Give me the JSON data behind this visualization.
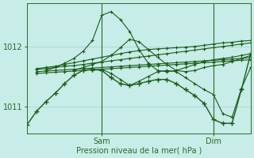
{
  "xlabel": "Pression niveau de la mer( hPa )",
  "bg_color": "#c8ece8",
  "plot_bg_color": "#c8ece8",
  "line_color": "#1a5c1a",
  "grid_color": "#a8d4cc",
  "axis_color": "#2a6a2a",
  "tick_color": "#2a6a2a",
  "ytick_positions": [
    1011.0,
    1012.0
  ],
  "ytick_labels": [
    "1011",
    "1012"
  ],
  "ylim": [
    1010.55,
    1012.72
  ],
  "xlim": [
    0,
    48
  ],
  "xtick_positions": [
    16,
    40
  ],
  "xtick_labels": [
    "Sam",
    "Dim"
  ],
  "lines": [
    {
      "x": [
        2,
        4,
        6,
        8,
        10,
        12,
        14,
        16,
        18,
        20,
        22,
        24,
        26,
        28,
        30,
        32,
        34,
        36,
        38,
        40,
        42,
        44,
        46,
        48
      ],
      "y": [
        1011.55,
        1011.56,
        1011.57,
        1011.58,
        1011.59,
        1011.6,
        1011.61,
        1011.62,
        1011.63,
        1011.64,
        1011.65,
        1011.66,
        1011.67,
        1011.68,
        1011.69,
        1011.7,
        1011.71,
        1011.72,
        1011.73,
        1011.74,
        1011.75,
        1011.76,
        1011.77,
        1011.78
      ]
    },
    {
      "x": [
        2,
        4,
        6,
        8,
        10,
        12,
        14,
        16,
        18,
        20,
        22,
        24,
        26,
        28,
        30,
        32,
        34,
        36,
        38,
        40,
        42,
        44,
        46,
        48
      ],
      "y": [
        1011.58,
        1011.59,
        1011.6,
        1011.61,
        1011.62,
        1011.63,
        1011.64,
        1011.65,
        1011.66,
        1011.67,
        1011.68,
        1011.69,
        1011.7,
        1011.71,
        1011.72,
        1011.73,
        1011.74,
        1011.75,
        1011.76,
        1011.77,
        1011.78,
        1011.79,
        1011.8,
        1011.82
      ]
    },
    {
      "x": [
        2,
        4,
        6,
        8,
        10,
        12,
        14,
        16,
        18,
        20,
        22,
        24,
        26,
        28,
        30,
        32,
        34,
        36,
        38,
        40,
        42,
        44,
        46,
        48
      ],
      "y": [
        1011.62,
        1011.63,
        1011.65,
        1011.67,
        1011.68,
        1011.7,
        1011.72,
        1011.74,
        1011.76,
        1011.78,
        1011.8,
        1011.82,
        1011.84,
        1011.86,
        1011.88,
        1011.9,
        1011.92,
        1011.94,
        1011.96,
        1011.98,
        1012.0,
        1012.02,
        1012.04,
        1012.06
      ]
    },
    {
      "x": [
        2,
        4,
        6,
        8,
        10,
        12,
        14,
        16,
        18,
        20,
        22,
        24,
        26,
        28,
        30,
        32,
        34,
        36,
        38,
        40,
        42,
        44,
        46,
        48
      ],
      "y": [
        1011.63,
        1011.65,
        1011.67,
        1011.7,
        1011.73,
        1011.76,
        1011.79,
        1011.82,
        1011.85,
        1011.88,
        1011.91,
        1011.93,
        1011.95,
        1011.96,
        1011.97,
        1011.98,
        1011.99,
        1012.0,
        1012.02,
        1012.04,
        1012.06,
        1012.07,
        1012.09,
        1012.1
      ]
    },
    {
      "x": [
        4,
        6,
        8,
        10,
        12,
        14,
        16,
        18,
        20,
        22,
        24,
        26,
        28,
        30,
        32,
        34,
        36,
        38,
        40,
        42,
        44,
        46,
        48
      ],
      "y": [
        1011.6,
        1011.65,
        1011.72,
        1011.8,
        1011.92,
        1012.1,
        1012.52,
        1012.58,
        1012.45,
        1012.25,
        1011.95,
        1011.72,
        1011.6,
        1011.58,
        1011.6,
        1011.65,
        1011.7,
        1011.75,
        1011.78,
        1011.8,
        1011.82,
        1011.85,
        1011.88
      ]
    },
    {
      "x": [
        10,
        12,
        14,
        16,
        18,
        20,
        22,
        24,
        26,
        28,
        30,
        32,
        34,
        36,
        38,
        40,
        42,
        44,
        46,
        48
      ],
      "y": [
        1011.6,
        1011.65,
        1011.7,
        1011.75,
        1011.85,
        1011.98,
        1012.12,
        1012.08,
        1011.95,
        1011.82,
        1011.7,
        1011.6,
        1011.58,
        1011.6,
        1011.65,
        1011.68,
        1011.7,
        1011.75,
        1011.8,
        1011.85
      ]
    },
    {
      "x": [
        14,
        16,
        18,
        20,
        22,
        24,
        26,
        28,
        30,
        32,
        34,
        36,
        38,
        40,
        42,
        44,
        46,
        48
      ],
      "y": [
        1011.6,
        1011.62,
        1011.55,
        1011.45,
        1011.35,
        1011.42,
        1011.5,
        1011.58,
        1011.6,
        1011.58,
        1011.48,
        1011.38,
        1011.28,
        1011.2,
        1010.88,
        1010.82,
        1011.3,
        1011.65
      ]
    }
  ],
  "main_line": {
    "x": [
      0,
      2,
      4,
      6,
      8,
      10,
      12,
      14,
      16,
      18,
      20,
      22,
      24,
      26,
      28,
      30,
      32,
      34,
      36,
      38,
      40,
      42,
      44,
      46,
      48
    ],
    "y": [
      1010.7,
      1010.92,
      1011.08,
      1011.22,
      1011.38,
      1011.52,
      1011.6,
      1011.62,
      1011.6,
      1011.48,
      1011.38,
      1011.35,
      1011.38,
      1011.42,
      1011.45,
      1011.45,
      1011.38,
      1011.28,
      1011.18,
      1011.05,
      1010.78,
      1010.72,
      1010.72,
      1011.28,
      1011.88
    ]
  }
}
